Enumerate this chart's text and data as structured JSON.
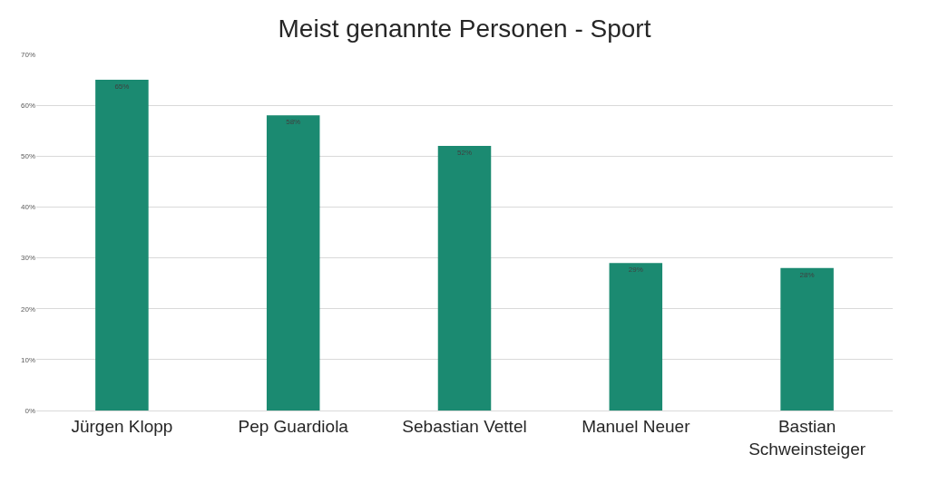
{
  "chart_data": {
    "type": "bar",
    "title": "Meist genannte Personen - Sport",
    "categories": [
      "Jürgen Klopp",
      "Pep Guardiola",
      "Sebastian Vettel",
      "Manuel Neuer",
      "Bastian Schweinsteiger"
    ],
    "values": [
      65,
      58,
      52,
      29,
      28
    ],
    "value_labels": [
      "65%",
      "58%",
      "52%",
      "29%",
      "28%"
    ],
    "color": "#1b8a71",
    "ylim": [
      0,
      70
    ],
    "yticks": [
      {
        "value": 0,
        "label": "0%"
      },
      {
        "value": 10,
        "label": "10%"
      },
      {
        "value": 20,
        "label": "20%"
      },
      {
        "value": 30,
        "label": "30%"
      },
      {
        "value": 40,
        "label": "40%"
      },
      {
        "value": 50,
        "label": "50%"
      },
      {
        "value": 60,
        "label": "60%"
      },
      {
        "value": 70,
        "label": "70%"
      }
    ],
    "grid": "y"
  }
}
